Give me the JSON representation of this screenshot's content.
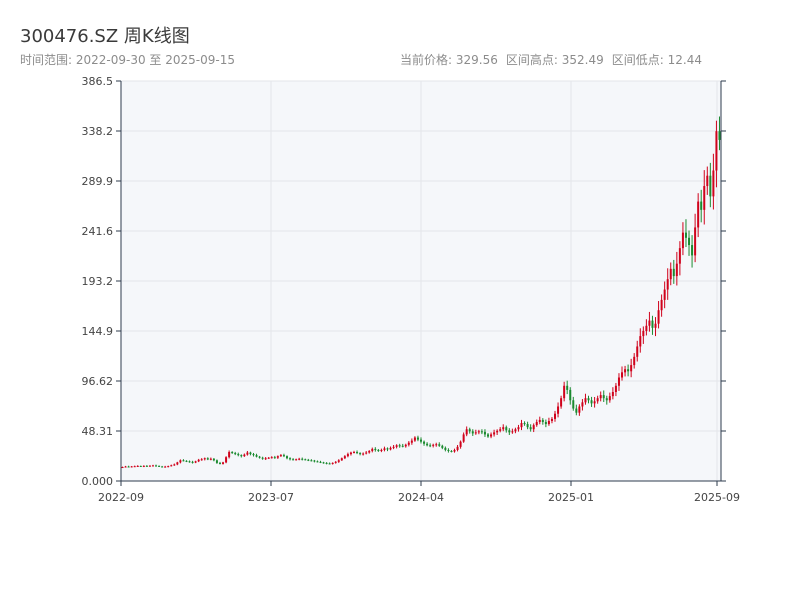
{
  "header": {
    "title": "300476.SZ 周K线图",
    "range_label": "时间范围:",
    "range_value": "2022-09-30 至 2025-09-15",
    "price_label": "当前价格:",
    "price_value": "329.56",
    "high_label": "区间高点:",
    "high_value": "352.49",
    "low_label": "区间低点:",
    "low_value": "12.44"
  },
  "colors": {
    "up": "#d0021b",
    "down": "#1a8a2f",
    "plot_bg": "#f5f7fa",
    "grid": "#e3e6ea",
    "axis": "#2e3b4e"
  },
  "chart_data": {
    "type": "candlestick",
    "title": "300476.SZ 周K线图",
    "xlabel": "",
    "ylabel": "",
    "ylim": [
      0,
      386.5
    ],
    "grid": true,
    "y_ticks": [
      "0.000",
      "48.31",
      "96.62",
      "144.9",
      "193.2",
      "241.6",
      "289.9",
      "338.2",
      "386.5"
    ],
    "x_ticks": [
      "2022-09",
      "2023-07",
      "2024-04",
      "2025-01",
      "2025-09"
    ],
    "current_price": 329.56,
    "period_high": 352.49,
    "period_low": 12.44,
    "closes": [
      13.5,
      14.0,
      13.8,
      14.1,
      14.3,
      14.5,
      14.2,
      14.6,
      14.4,
      14.8,
      15.0,
      14.6,
      14.0,
      13.6,
      13.9,
      14.4,
      15.2,
      16.0,
      18.0,
      20.0,
      19.5,
      19.0,
      18.5,
      17.8,
      19.0,
      20.5,
      21.0,
      22.0,
      20.8,
      21.5,
      20.0,
      17.5,
      16.5,
      18.0,
      23.0,
      28.0,
      27.0,
      26.0,
      25.0,
      24.0,
      25.5,
      27.5,
      26.0,
      25.0,
      23.5,
      22.5,
      21.5,
      22.0,
      22.5,
      23.0,
      22.5,
      24.0,
      25.0,
      24.0,
      22.0,
      21.0,
      20.5,
      21.0,
      21.5,
      21.0,
      20.5,
      20.0,
      19.8,
      19.0,
      18.5,
      18.0,
      17.5,
      17.0,
      16.5,
      17.5,
      18.5,
      20.0,
      22.0,
      24.0,
      26.0,
      27.5,
      28.0,
      27.0,
      26.0,
      26.5,
      27.5,
      29.0,
      31.0,
      30.0,
      29.0,
      30.0,
      31.5,
      30.5,
      32.0,
      33.0,
      34.5,
      34.0,
      33.5,
      35.0,
      37.0,
      39.0,
      42.0,
      40.0,
      38.0,
      36.0,
      34.5,
      34.0,
      35.0,
      35.5,
      34.0,
      32.0,
      30.0,
      29.0,
      28.5,
      30.0,
      33.0,
      38.0,
      45.0,
      50.0,
      48.0,
      46.0,
      47.0,
      48.0,
      47.5,
      45.0,
      43.0,
      45.0,
      47.0,
      48.5,
      50.0,
      52.0,
      49.0,
      47.0,
      48.0,
      50.0,
      52.0,
      56.0,
      55.0,
      52.0,
      50.0,
      54.0,
      57.0,
      59.0,
      57.0,
      55.0,
      58.0,
      60.0,
      65.0,
      72.0,
      80.0,
      92.0,
      88.0,
      78.0,
      70.0,
      66.0,
      72.0,
      76.0,
      80.0,
      78.0,
      75.0,
      77.0,
      80.0,
      83.0,
      80.0,
      78.0,
      82.0,
      86.0,
      92.0,
      100.0,
      105.0,
      108.0,
      106.0,
      112.0,
      120.0,
      130.0,
      140.0,
      145.0,
      150.0,
      155.0,
      148.0,
      152.0,
      165.0,
      175.0,
      185.0,
      195.0,
      205.0,
      198.0,
      210.0,
      225.0,
      240.0,
      235.0,
      228.0,
      218.0,
      245.0,
      270.0,
      262.0,
      285.0,
      295.0,
      275.0,
      300.0,
      338.0,
      329.56
    ]
  }
}
